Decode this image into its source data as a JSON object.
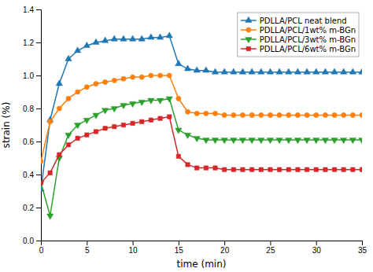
{
  "chart_data": {
    "type": "line",
    "xlabel": "time (min)",
    "ylabel": "strain (%)",
    "xlim": [
      0,
      35
    ],
    "ylim": [
      0.0,
      1.4
    ],
    "xticks": [
      0,
      5,
      10,
      15,
      20,
      25,
      30,
      35
    ],
    "yticks": [
      {
        "value": 0.0,
        "label": "0.0"
      },
      0.2,
      0.4,
      0.6,
      0.8,
      {
        "value": 1.0,
        "label": "1.0"
      },
      1.2,
      1.4
    ],
    "legend": "upper right",
    "x": [
      0,
      1,
      2,
      3,
      4,
      5,
      6,
      7,
      8,
      9,
      10,
      11,
      12,
      13,
      14,
      15,
      16,
      17,
      18,
      19,
      20,
      21,
      22,
      23,
      24,
      25,
      26,
      27,
      28,
      29,
      30,
      31,
      32,
      33,
      34,
      35
    ],
    "series": [
      {
        "name": "PDLLA/PCL neat blend",
        "marker": "triangle-up",
        "values": [
          0.31,
          0.73,
          0.95,
          1.1,
          1.15,
          1.18,
          1.2,
          1.21,
          1.22,
          1.22,
          1.22,
          1.22,
          1.23,
          1.23,
          1.24,
          1.07,
          1.04,
          1.03,
          1.03,
          1.02,
          1.02,
          1.02,
          1.02,
          1.02,
          1.02,
          1.02,
          1.02,
          1.02,
          1.02,
          1.02,
          1.02,
          1.02,
          1.02,
          1.02,
          1.02,
          1.02
        ]
      },
      {
        "name": "PDLLA/PCL/1wt% m-BGn",
        "marker": "circle",
        "values": [
          0.48,
          0.72,
          0.8,
          0.86,
          0.9,
          0.93,
          0.95,
          0.96,
          0.97,
          0.98,
          0.99,
          0.99,
          1.0,
          1.0,
          1.0,
          0.86,
          0.78,
          0.77,
          0.77,
          0.77,
          0.76,
          0.76,
          0.76,
          0.76,
          0.76,
          0.76,
          0.76,
          0.76,
          0.76,
          0.76,
          0.76,
          0.76,
          0.76,
          0.76,
          0.76,
          0.76
        ]
      },
      {
        "name": "PDLLA/PCL/3wt% m-BGn",
        "marker": "triangle-down",
        "values": [
          0.35,
          0.15,
          0.5,
          0.64,
          0.7,
          0.73,
          0.76,
          0.79,
          0.8,
          0.82,
          0.83,
          0.84,
          0.85,
          0.85,
          0.86,
          0.67,
          0.64,
          0.62,
          0.61,
          0.61,
          0.61,
          0.61,
          0.61,
          0.61,
          0.61,
          0.61,
          0.61,
          0.61,
          0.61,
          0.61,
          0.61,
          0.61,
          0.61,
          0.61,
          0.61,
          0.61
        ]
      },
      {
        "name": "PDLLA/PCL/6wt% m-BGn",
        "marker": "square",
        "values": [
          0.35,
          0.41,
          0.52,
          0.58,
          0.62,
          0.64,
          0.66,
          0.68,
          0.69,
          0.7,
          0.71,
          0.72,
          0.73,
          0.74,
          0.75,
          0.51,
          0.46,
          0.44,
          0.44,
          0.44,
          0.43,
          0.43,
          0.43,
          0.43,
          0.43,
          0.43,
          0.43,
          0.43,
          0.43,
          0.43,
          0.43,
          0.43,
          0.43,
          0.43,
          0.43,
          0.43
        ]
      }
    ]
  }
}
